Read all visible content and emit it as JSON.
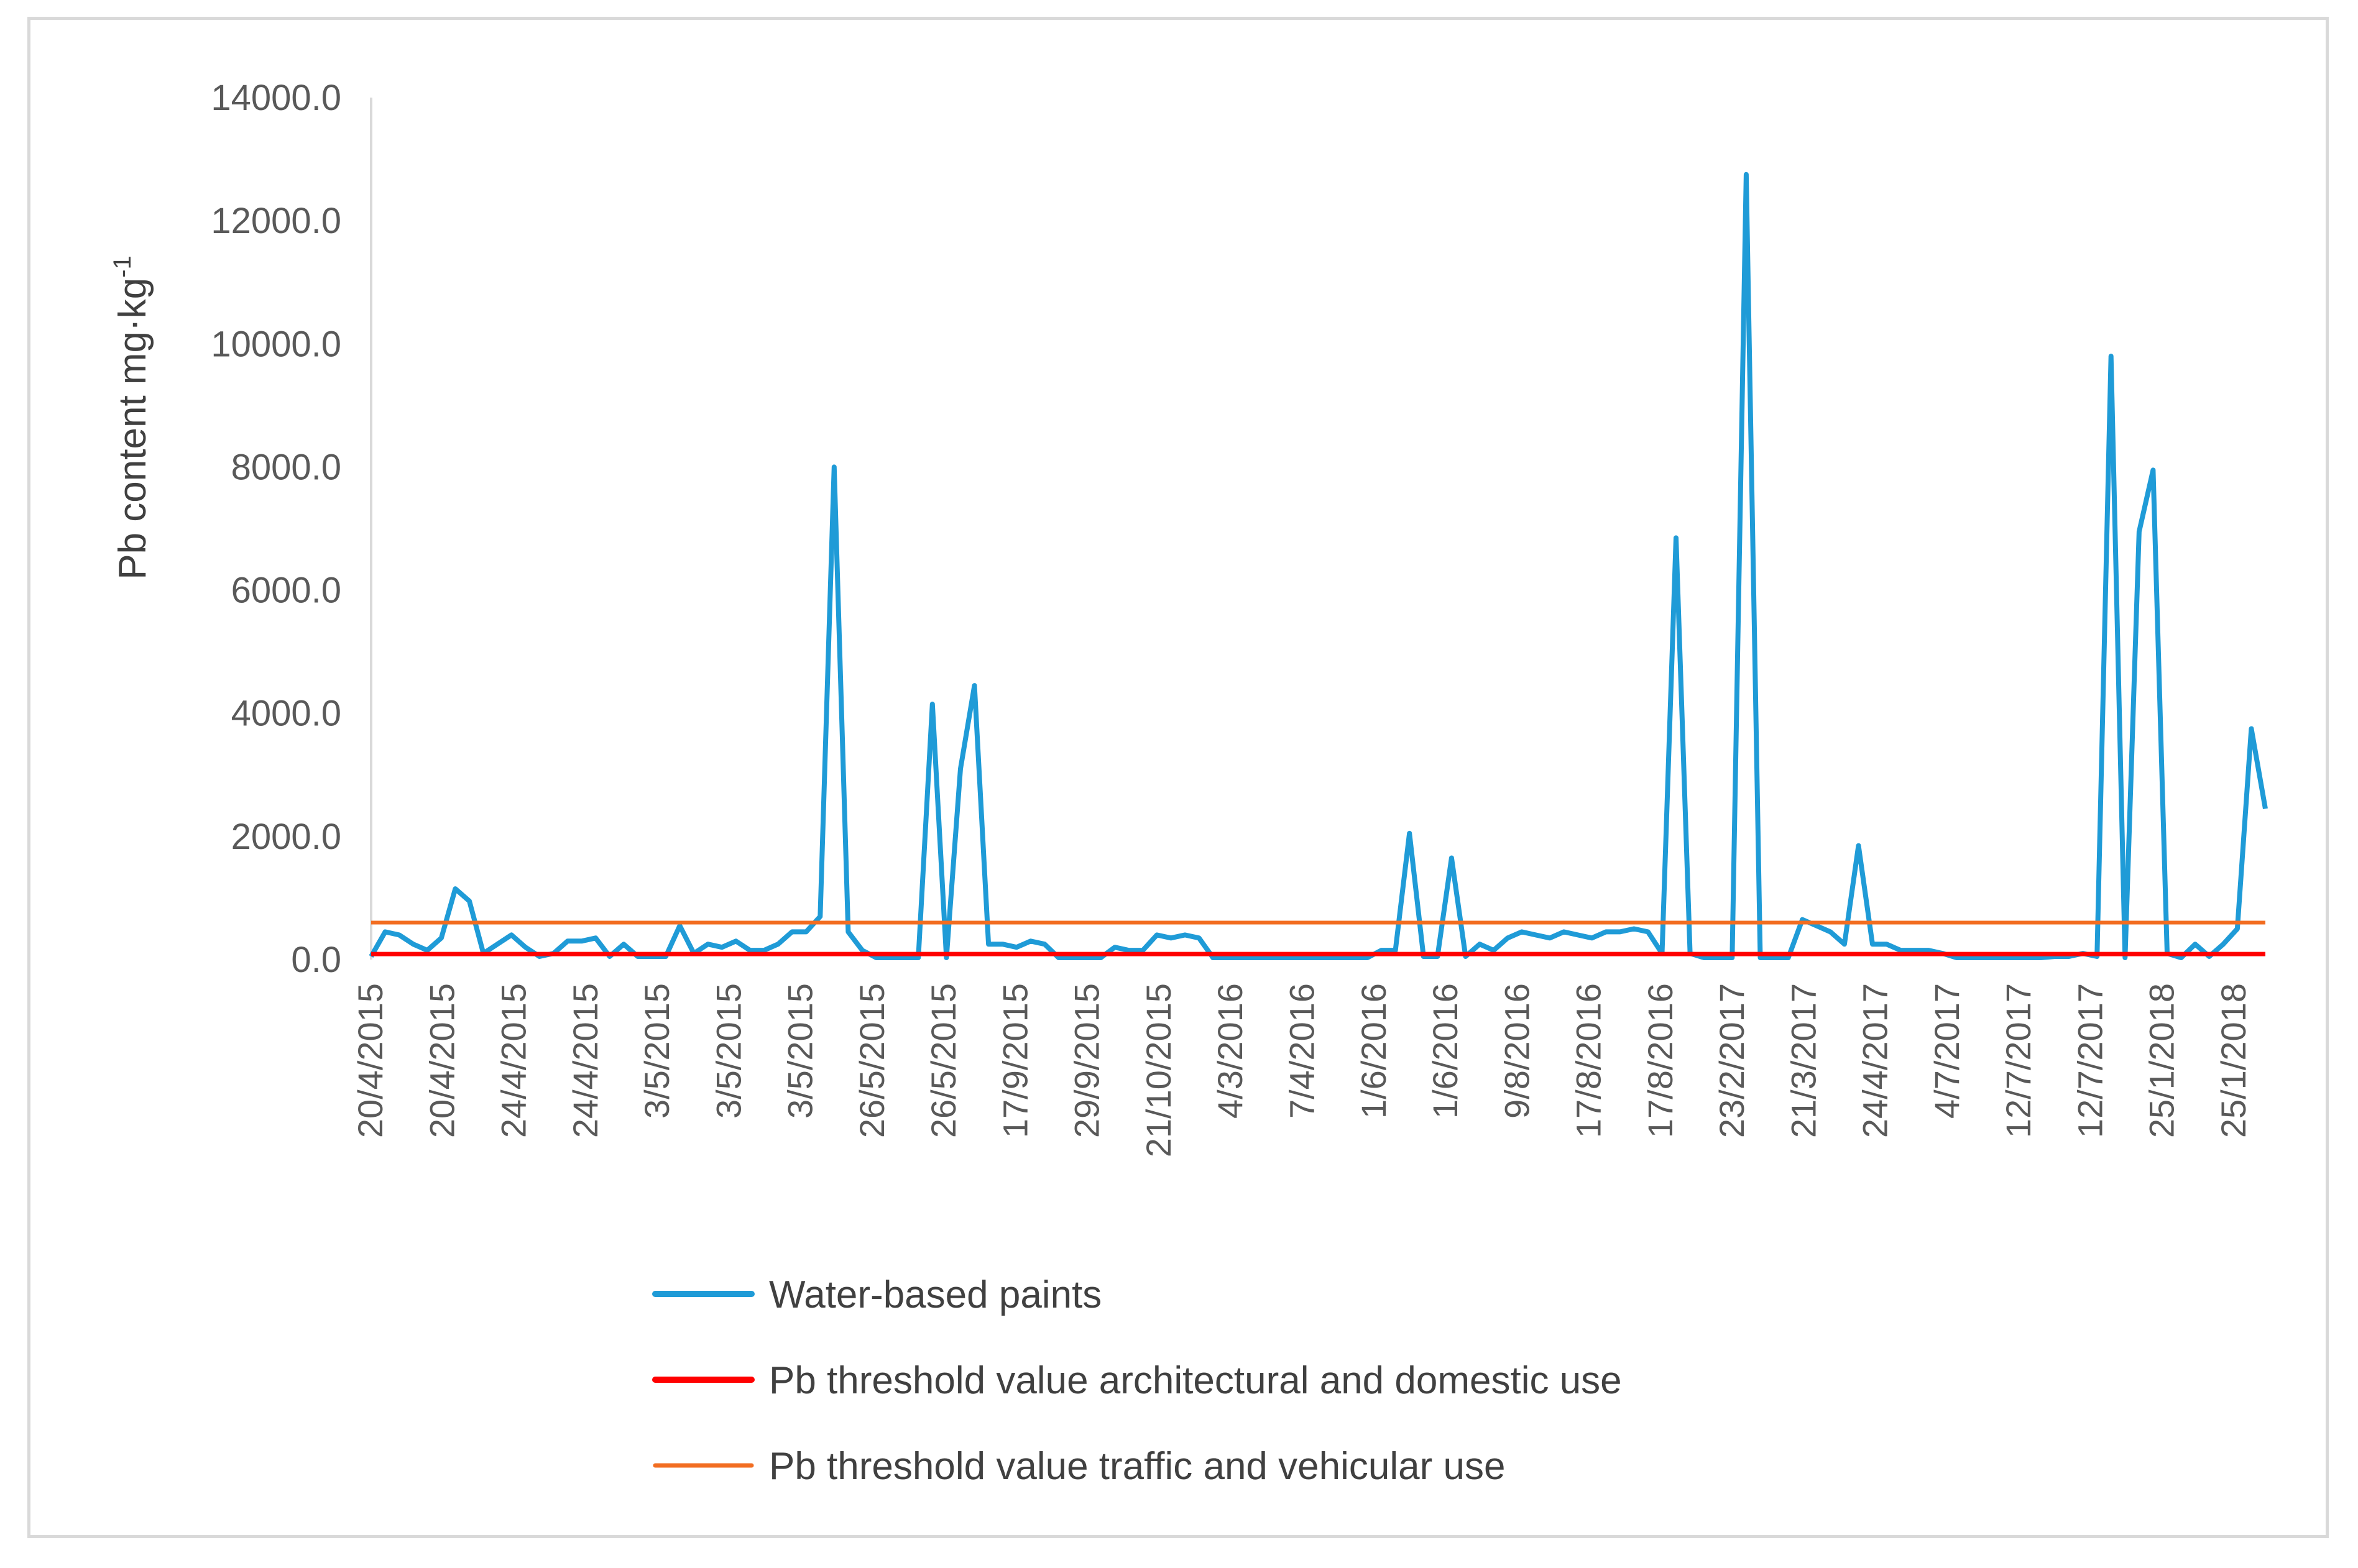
{
  "chart_data": {
    "type": "line",
    "title": "",
    "xlabel": "",
    "ylabel": "Pb content mg·kg",
    "ylabel_superscript": "-1",
    "ylim": [
      0,
      14000
    ],
    "yticks": [
      "0.0",
      "2000.0",
      "4000.0",
      "6000.0",
      "8000.0",
      "10000.0",
      "12000.0",
      "14000.0"
    ],
    "xtick_labels": [
      "20/4/2015",
      "20/4/2015",
      "24/4/2015",
      "24/4/2015",
      "3/5/2015",
      "3/5/2015",
      "3/5/2015",
      "26/5/2015",
      "26/5/2015",
      "17/9/2015",
      "29/9/2015",
      "21/10/2015",
      "4/3/2016",
      "7/4/2016",
      "1/6/2016",
      "1/6/2016",
      "9/8/2016",
      "17/8/2016",
      "17/8/2016",
      "23/2/2017",
      "21/3/2017",
      "24/4/2017",
      "4/7/2017",
      "12/7/2017",
      "12/7/2017",
      "25/1/2018",
      "25/1/2018"
    ],
    "n_points": 136,
    "series": [
      {
        "name": "Water-based paints",
        "color": "#1f9bd7",
        "values": [
          50,
          450,
          400,
          250,
          150,
          350,
          1150,
          950,
          100,
          250,
          400,
          200,
          50,
          100,
          300,
          300,
          350,
          50,
          250,
          50,
          50,
          50,
          550,
          100,
          250,
          200,
          300,
          150,
          150,
          250,
          450,
          450,
          700,
          8000,
          450,
          150,
          30,
          30,
          30,
          30,
          4150,
          30,
          3100,
          4450,
          250,
          250,
          200,
          300,
          250,
          30,
          30,
          30,
          30,
          200,
          150,
          150,
          400,
          350,
          400,
          350,
          30,
          30,
          30,
          30,
          30,
          30,
          30,
          30,
          30,
          30,
          30,
          30,
          150,
          150,
          2050,
          50,
          50,
          1650,
          50,
          250,
          150,
          350,
          450,
          400,
          350,
          450,
          400,
          350,
          450,
          450,
          500,
          450,
          100,
          6850,
          100,
          30,
          30,
          30,
          12750,
          30,
          30,
          30,
          650,
          550,
          450,
          250,
          1850,
          250,
          250,
          150,
          150,
          150,
          100,
          30,
          30,
          30,
          30,
          30,
          30,
          30,
          50,
          50,
          100,
          50,
          9800,
          30,
          6950,
          7950,
          100,
          30,
          250,
          50,
          250,
          500,
          3750,
          2450
        ]
      },
      {
        "name": "Pb threshold value architectural and domestic use",
        "color": "#ff0000",
        "constant": 90
      },
      {
        "name": "Pb threshold value traffic and vehicular use",
        "color": "#f26d21",
        "constant": 600
      }
    ],
    "legend": "bottom-left"
  }
}
